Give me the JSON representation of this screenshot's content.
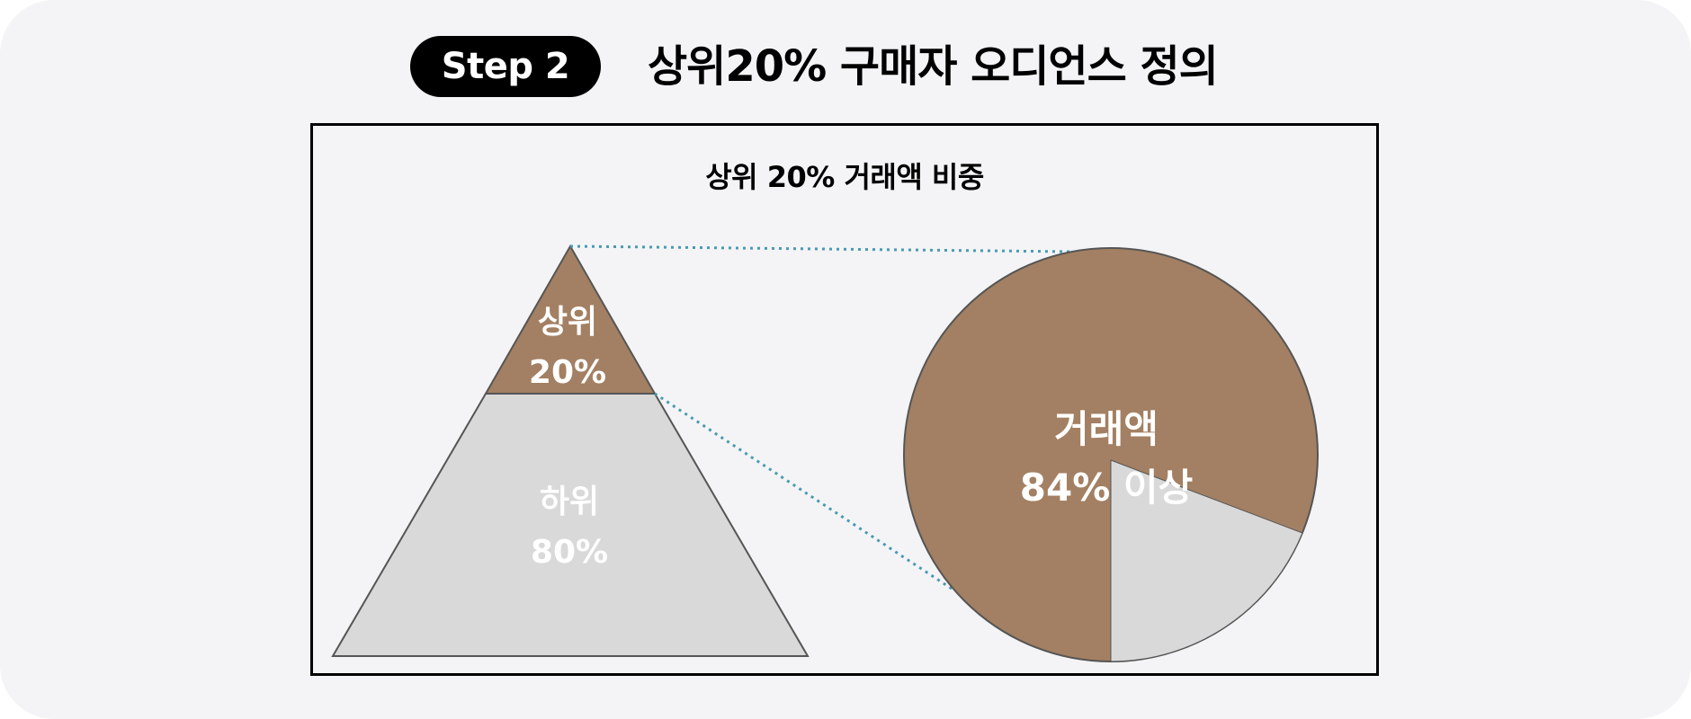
{
  "header": {
    "step_label": "Step 2",
    "title": "상위20% 구매자 오디언스 정의"
  },
  "diagram": {
    "title": "상위 20% 거래액 비중",
    "pyramid": {
      "top_segment": {
        "line1": "상위",
        "line2": "20%"
      },
      "bottom_segment": {
        "line1": "하위",
        "line2": "80%"
      }
    },
    "pie": {
      "label_line1": "거래액",
      "label_line2": "84% 이상"
    }
  },
  "colors": {
    "brown": "#a38063",
    "gray": "#d9d9d9",
    "dotted_line": "#4a9ab0",
    "badge_bg": "#000000",
    "background": "#f4f4f6"
  }
}
